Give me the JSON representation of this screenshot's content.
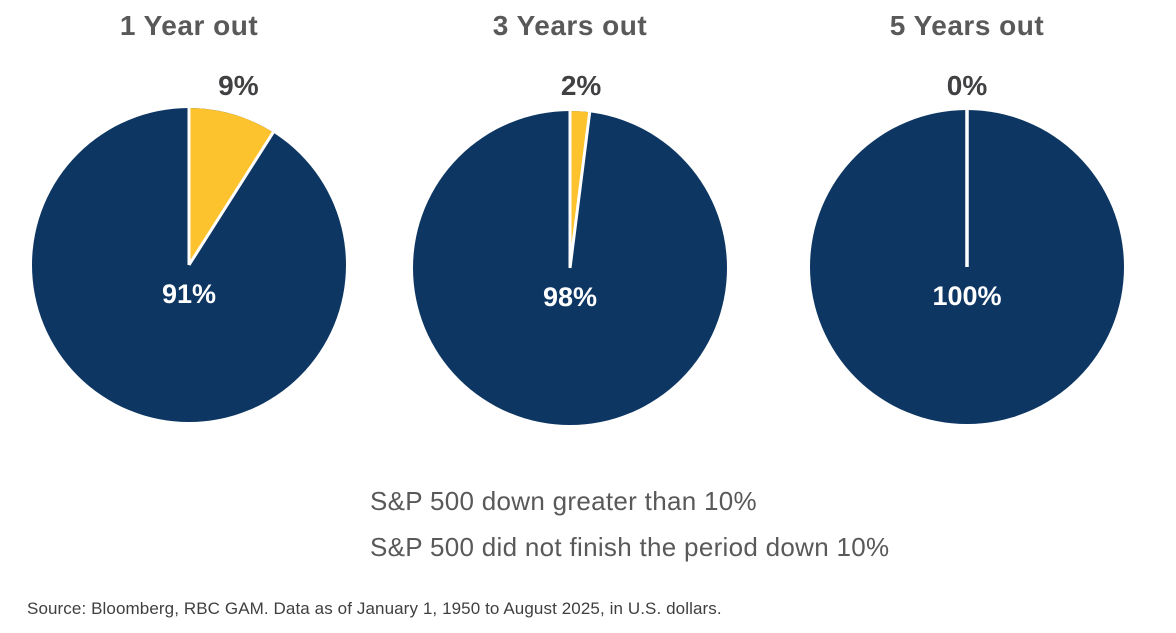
{
  "colors": {
    "down": "#FCC32E",
    "not_down": "#0D3663",
    "slice_divider": "#FFFFFF",
    "title_text": "#595959",
    "percent_label_text": "#414042",
    "inner_label_text": "#FFFFFF",
    "legend_text": "#595959",
    "source_text": "#3F3F3F",
    "background": "#FFFFFF"
  },
  "chart_data": [
    {
      "type": "pie",
      "title": "1 Year out",
      "slices": [
        {
          "name": "S&P 500 down greater than 10%",
          "value": 9,
          "label": "9%"
        },
        {
          "name": "S&P 500 did not finish the period down 10%",
          "value": 91,
          "label": "91%"
        }
      ]
    },
    {
      "type": "pie",
      "title": "3 Years out",
      "slices": [
        {
          "name": "S&P 500 down greater than 10%",
          "value": 2,
          "label": "2%"
        },
        {
          "name": "S&P 500 did not finish the period down 10%",
          "value": 98,
          "label": "98%"
        }
      ]
    },
    {
      "type": "pie",
      "title": "5 Years out",
      "slices": [
        {
          "name": "S&P 500 down greater than 10%",
          "value": 0,
          "label": "0%"
        },
        {
          "name": "S&P 500 did not finish the period down 10%",
          "value": 100,
          "label": "100%"
        }
      ]
    }
  ],
  "legend": [
    {
      "label": "S&P 500 down greater than 10%",
      "color": "#FCC32E"
    },
    {
      "label": "S&P 500 did not finish the period down 10%",
      "color": "#0D3663"
    }
  ],
  "source": "Source: Bloomberg, RBC GAM. Data as of January 1, 1950 to August 2025, in U.S. dollars."
}
